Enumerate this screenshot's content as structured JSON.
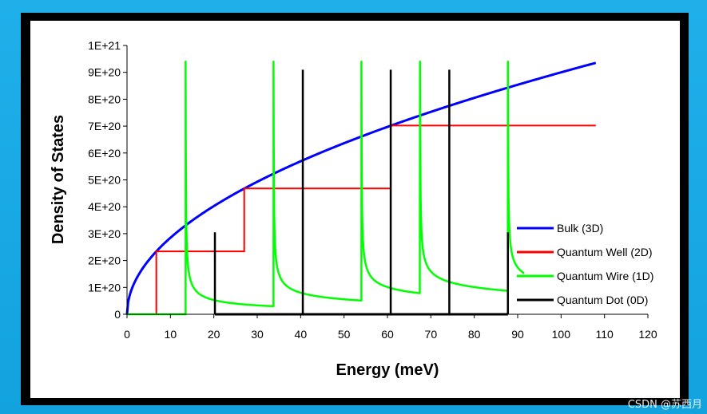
{
  "chart_data": {
    "type": "line",
    "title": "",
    "xlabel": "Energy (meV)",
    "ylabel": "Density of States",
    "xlim": [
      0,
      120
    ],
    "ylim": [
      0,
      1e+21
    ],
    "x_ticks": [
      "0",
      "10",
      "20",
      "30",
      "40",
      "50",
      "60",
      "70",
      "80",
      "90",
      "100",
      "110",
      "120"
    ],
    "y_ticks": [
      "0",
      "1E+20",
      "2E+20",
      "3E+20",
      "4E+20",
      "5E+20",
      "6E+20",
      "7E+20",
      "8E+20",
      "9E+20",
      "1E+21"
    ],
    "legend_position": "right",
    "series": [
      {
        "name": "Bulk (3D)",
        "color": "#0000ff",
        "kind": "sqrt",
        "coefficient": 9e+19,
        "x_range": [
          0,
          108
        ]
      },
      {
        "name": "Quantum Well (2D)",
        "color": "#ff0000",
        "kind": "step",
        "x": [
          0,
          6.75,
          6.75,
          27,
          27,
          60.75,
          60.75,
          108
        ],
        "values": [
          0,
          0,
          2.34e+20,
          2.34e+20,
          4.68e+20,
          4.68e+20,
          7.02e+20,
          7.02e+20
        ]
      },
      {
        "name": "Quantum Wire (1D)",
        "color": "#00ff00",
        "kind": "inverse-sqrt",
        "edges": [
          13.5,
          33.75,
          54,
          67.5,
          87.75
        ],
        "peak": 9.4e+20,
        "amplitude": 1.35e+20,
        "x_range": [
          0,
          91.5
        ]
      },
      {
        "name": "Quantum Dot (0D)",
        "color": "#000000",
        "kind": "delta",
        "x": [
          20.25,
          40.5,
          60.75,
          74.25,
          87.75
        ],
        "values": [
          3.05e+20,
          9.1e+20,
          9.1e+20,
          9.1e+20,
          3.05e+20
        ]
      }
    ]
  },
  "watermark": "CSDN @苏西月"
}
